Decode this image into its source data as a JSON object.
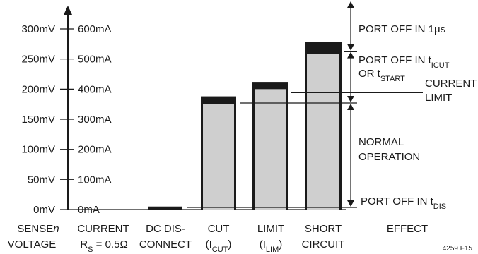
{
  "chart_data": {
    "type": "bar",
    "title": "",
    "axis_voltage_ticks": [
      "0mV",
      "50mV",
      "100mV",
      "150mV",
      "200mV",
      "250mV",
      "300mV"
    ],
    "axis_current_ticks": [
      "0mA",
      "100mA",
      "200mA",
      "300mA",
      "400mA",
      "500mA",
      "600mA"
    ],
    "ylim_mV": [
      0,
      300
    ],
    "categories": [
      {
        "line1": "DC DIS-",
        "line2": "CONNECT"
      },
      {
        "line1": "CUT",
        "line2": "(I",
        "sub2": "CUT",
        "end2": ")"
      },
      {
        "line1": "LIMIT",
        "line2": "(I",
        "sub2": "LIM",
        "end2": ")"
      },
      {
        "line1": "SHORT",
        "line2": "CIRCUIT"
      }
    ],
    "bars": [
      {
        "category": "DC DIS-CONNECT",
        "low_mV": 0,
        "high_mV": 5,
        "light_mV": 0
      },
      {
        "category": "CUT (ICUT)",
        "low_mV": 0,
        "high_mV": 188,
        "light_mV": 175
      },
      {
        "category": "LIMIT (ILIM)",
        "low_mV": 0,
        "high_mV": 212,
        "light_mV": 200
      },
      {
        "category": "SHORT CIRCUIT",
        "low_mV": 0,
        "high_mV": 278,
        "light_mV": 258
      }
    ],
    "reference_lines_mV": {
      "port_off_dis": 3.5,
      "current_limit": 194,
      "cut_limit": 177,
      "port_off_1us": 263
    },
    "effect_regions": [
      {
        "text": "PORT OFF IN 1",
        "symbol": "μs",
        "from_mV": 263,
        "to_mV": 327
      },
      {
        "line1": "PORT OFF IN t",
        "sub1": "ICUT",
        "line2": "OR t",
        "sub2": "START",
        "from_mV": 177,
        "to_mV": 263
      },
      {
        "line1": "NORMAL",
        "line2": "OPERATION",
        "from_mV": 3.5,
        "to_mV": 177
      },
      {
        "text": "PORT OFF IN t",
        "sub": "DIS",
        "at_mV": 3.5
      }
    ],
    "current_limit_label": {
      "line1": "CURRENT",
      "line2": "LIMIT"
    },
    "colors": {
      "dark": "#1a1a1a",
      "light": "#cfcfcf"
    }
  },
  "bottom_labels": {
    "sense": {
      "line1": "SENSE",
      "italic": "n",
      "line2": "VOLTAGE"
    },
    "current": {
      "line1": "CURRENT",
      "r": "R",
      "rsub": "S",
      "rval": " = 0.5Ω"
    },
    "effect": "EFFECT"
  },
  "figure_code": "4259 F15"
}
